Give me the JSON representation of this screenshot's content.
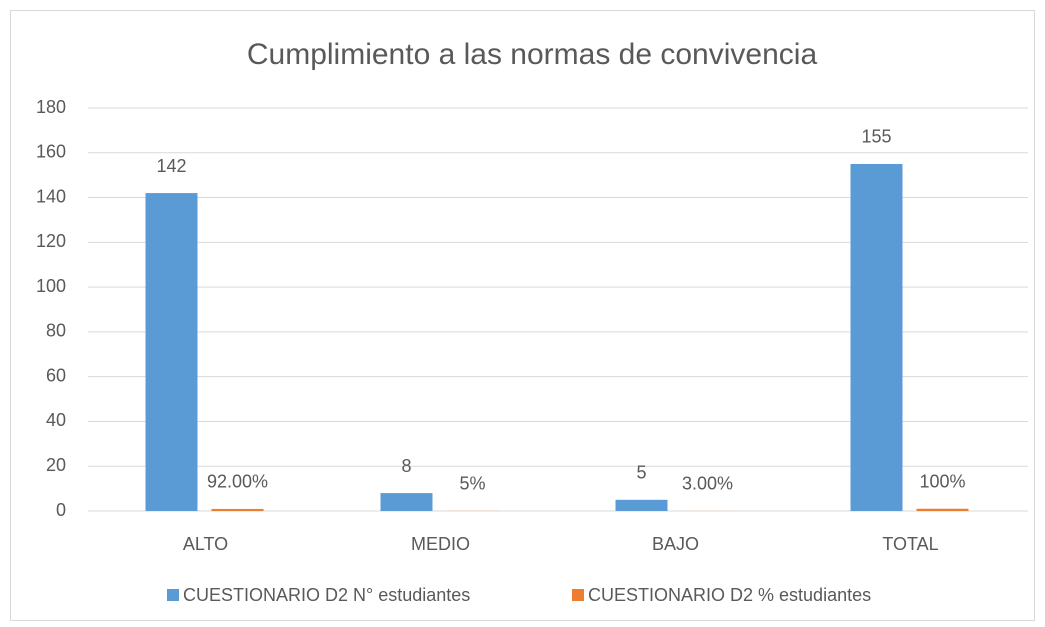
{
  "chart_data": {
    "type": "bar",
    "title": "Cumplimiento a las normas de convivencia",
    "categories": [
      "ALTO",
      "MEDIO",
      "BAJO",
      "TOTAL"
    ],
    "series": [
      {
        "name": "CUESTIONARIO D2 N° estudiantes",
        "color": "#5b9bd5",
        "values": [
          142,
          8,
          5,
          155
        ]
      },
      {
        "name": "CUESTIONARIO D2 % estudiantes",
        "color": "#ed7d31",
        "values": [
          0.92,
          0.05,
          0.03,
          1
        ],
        "value_labels": [
          "92.00%",
          "5%",
          "3.00%",
          "100%"
        ]
      }
    ],
    "ylim": [
      0,
      180
    ],
    "yticks": [
      0,
      20,
      40,
      60,
      80,
      100,
      120,
      140,
      160,
      180
    ],
    "grid": true,
    "legend": "bottom"
  }
}
